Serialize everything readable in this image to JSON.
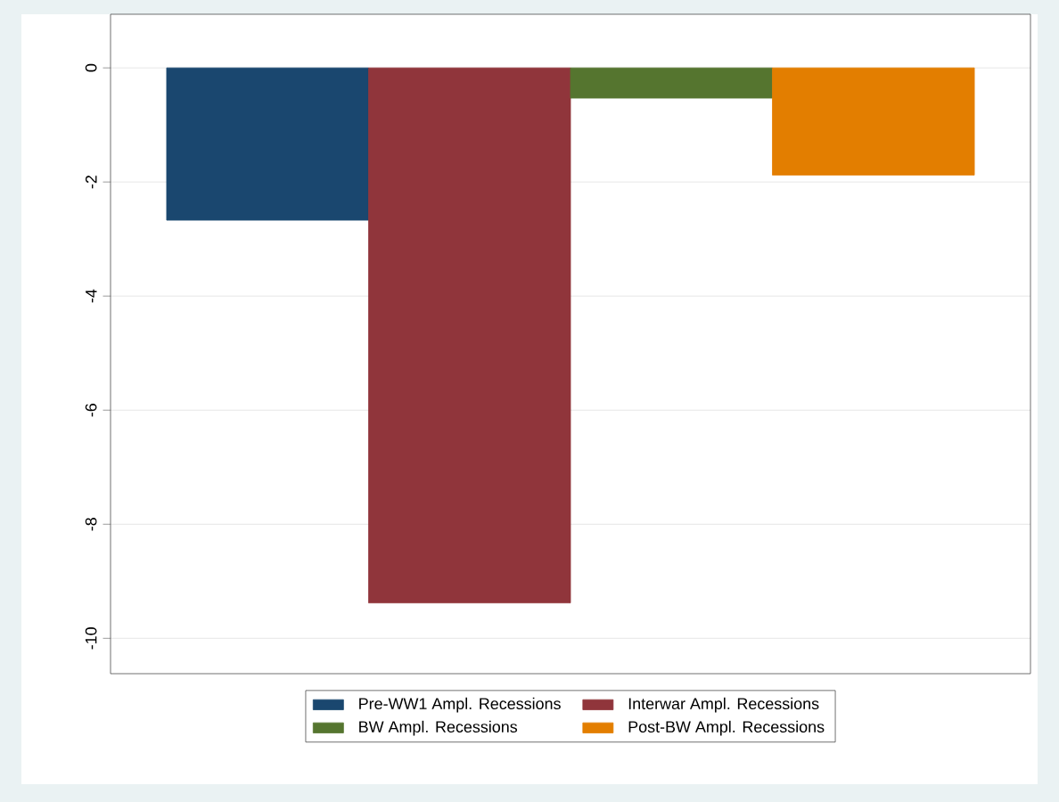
{
  "chart_data": {
    "type": "bar",
    "categories": [
      null
    ],
    "series": [
      {
        "name": "Pre-WW1 Ampl. Recessions",
        "color": "#1a476f",
        "values": [
          -2.67
        ]
      },
      {
        "name": "Interwar Ampl. Recessions",
        "color": "#90353b",
        "values": [
          -9.38
        ]
      },
      {
        "name": "BW Ampl. Recessions",
        "color": "#55752f",
        "values": [
          -0.53
        ]
      },
      {
        "name": "Post-BW Ampl. Recessions",
        "color": "#e37e00",
        "values": [
          -1.88
        ]
      }
    ],
    "ylim": [
      -10.62,
      0.94
    ],
    "yticks": [
      0,
      -2,
      -4,
      -6,
      -8,
      -10
    ],
    "grid": "y",
    "legend": "bottom"
  }
}
